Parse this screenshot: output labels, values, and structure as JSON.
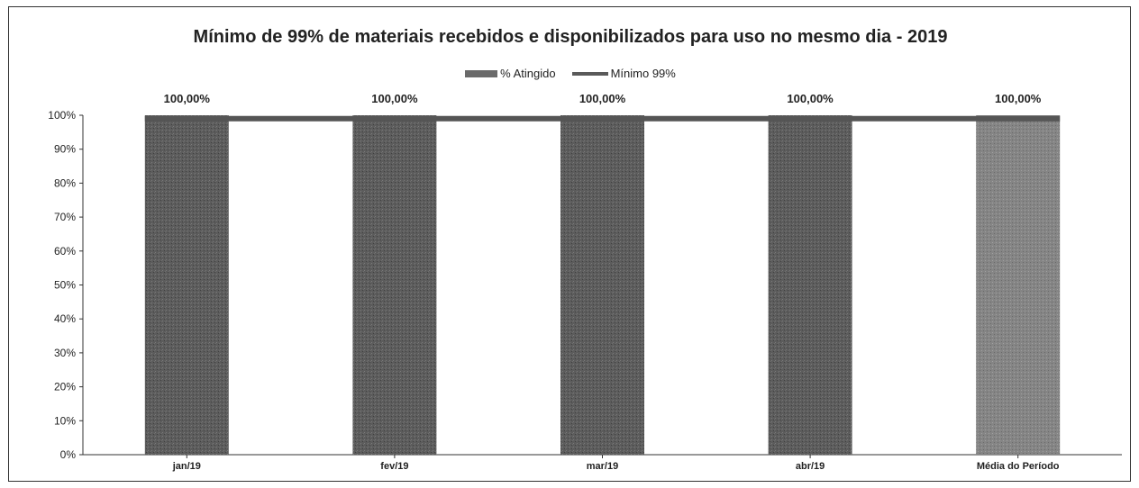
{
  "chart_data": {
    "type": "bar",
    "title": "Mínimo de 99% de materiais recebidos e disponibilizados para uso no mesmo dia - 2019",
    "categories": [
      "jan/19",
      "fev/19",
      "mar/19",
      "abr/19",
      "Média do Período"
    ],
    "series": [
      {
        "name": "% Atingido",
        "type": "bar",
        "values": [
          100,
          100,
          100,
          100,
          100
        ],
        "color": "#5e5e5e"
      },
      {
        "name": "Mínimo 99%",
        "type": "line",
        "values": [
          99,
          99,
          99,
          99,
          99
        ],
        "color": "#555555"
      }
    ],
    "data_labels": [
      "100,00%",
      "100,00%",
      "100,00%",
      "100,00%",
      "100,00%"
    ],
    "ylim": [
      0,
      100
    ],
    "yticks": [
      "0%",
      "10%",
      "20%",
      "30%",
      "40%",
      "50%",
      "60%",
      "70%",
      "80%",
      "90%",
      "100%"
    ],
    "legend_position": "top-center",
    "grid": false
  }
}
